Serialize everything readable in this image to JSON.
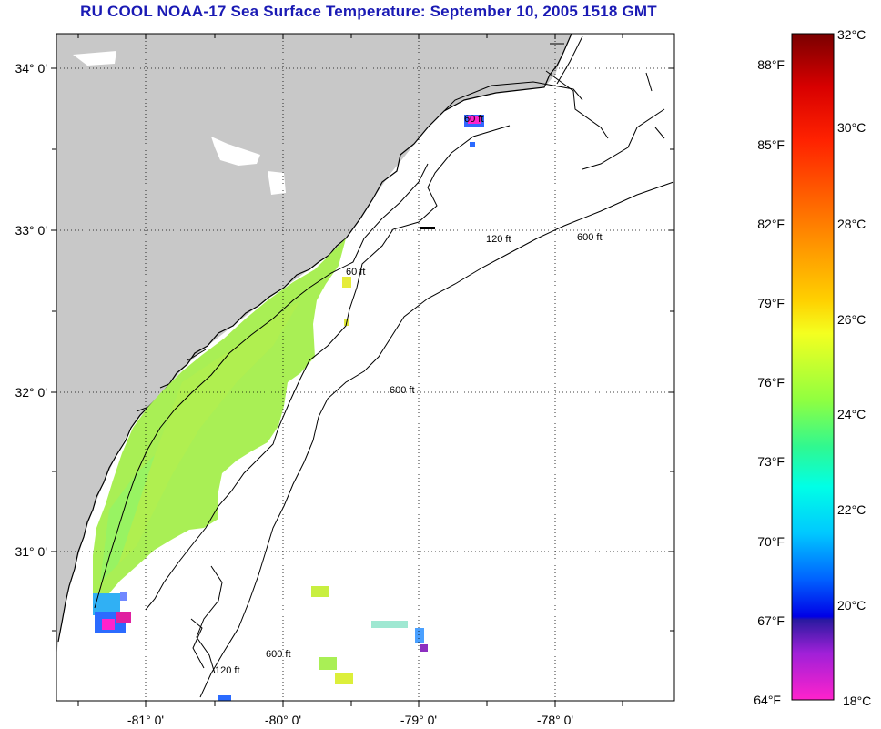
{
  "title": "RU COOL  NOAA-17  Sea Surface Temperature:  September 10, 2005 1518 GMT",
  "latitude_labels": [
    "34° 0'",
    "33° 0'",
    "32° 0'",
    "31° 0'"
  ],
  "longitude_labels": [
    "-81° 0'",
    "-80° 0'",
    "-79° 0'",
    "-78° 0'"
  ],
  "contours": {
    "c60": "60 ft",
    "c120": "120 ft",
    "c600": "600 ft"
  },
  "colorbar": {
    "fahrenheit": [
      "88°F",
      "85°F",
      "82°F",
      "79°F",
      "76°F",
      "73°F",
      "70°F",
      "67°F",
      "64°F"
    ],
    "celsius": [
      "32°C",
      "30°C",
      "28°C",
      "26°C",
      "24°C",
      "22°C",
      "20°C",
      "18°C"
    ]
  },
  "colors": {
    "land": "#c8c8c8",
    "title": "#1a1ab4",
    "sst_warm": "#a9ef55",
    "sst_cool": "#2b6bff"
  }
}
